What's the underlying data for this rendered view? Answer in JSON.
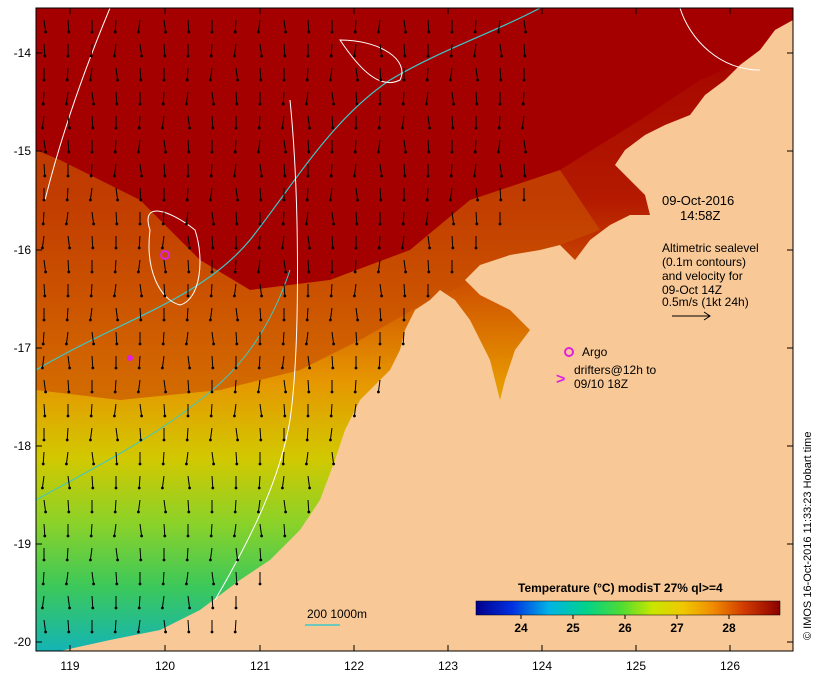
{
  "map": {
    "lon_ticks": [
      "119",
      "120",
      "121",
      "122",
      "123",
      "124",
      "125",
      "126"
    ],
    "lat_ticks": [
      "-14",
      "-15",
      "-16",
      "-17",
      "-18",
      "-19",
      "-20"
    ],
    "lon_range": [
      118.6,
      126.7
    ],
    "lat_range": [
      -20.1,
      -13.6
    ]
  },
  "annotations": {
    "date": "09-Oct-2016",
    "time": "14:58Z",
    "altimetry_lines": [
      "Altimetric sealevel",
      "(0.1m contours)",
      "and velocity for",
      "09-Oct 14Z",
      "0.5m/s (1kt 24h)"
    ],
    "argo_label": "Argo",
    "drifters_lines": [
      "drifters@12h to",
      "09/10 18Z"
    ],
    "contour_label": "200  1000m"
  },
  "colorbar": {
    "title": "Temperature (°C) modisT 27% ql>=4",
    "ticks": [
      "24",
      "25",
      "26",
      "27",
      "28"
    ]
  },
  "credit": "© IMOS 16-Oct-2016 11:33:23 Hobart time",
  "colors": {
    "land": "#f8c896",
    "warm_sst": "#a50000",
    "vector": "#000000",
    "argo": "#e020e0",
    "bathy_200": "#3cc8c8",
    "sealevel_contour": "#ffffff"
  }
}
